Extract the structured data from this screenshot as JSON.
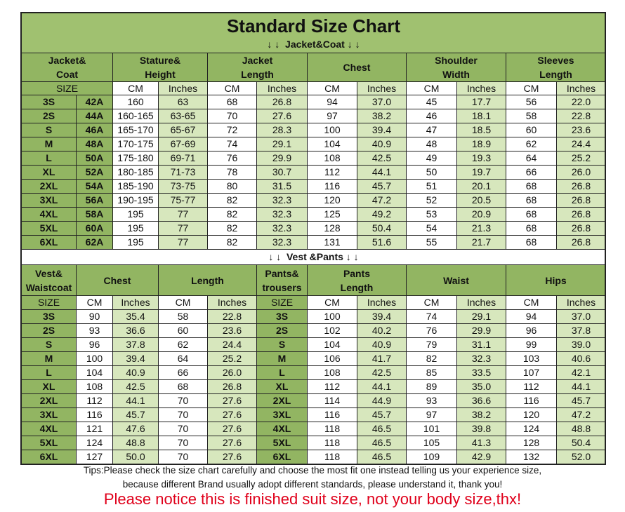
{
  "title": "Standard Size Chart",
  "jacket_section": "↓ ↓  Jacket&Coat ↓ ↓",
  "jacket_table": {
    "headers": [
      [
        "Jacket&",
        "Coat"
      ],
      [
        "Stature&",
        "Height"
      ],
      [
        "Jacket",
        "Length"
      ],
      [
        "Chest"
      ],
      [
        "Shoulder",
        "Width"
      ],
      [
        "Sleeves",
        "Length"
      ]
    ],
    "units": [
      "SIZE",
      "CM",
      "Inches",
      "CM",
      "Inches",
      "CM",
      "Inches",
      "CM",
      "Inches",
      "CM",
      "Inches"
    ],
    "rows": [
      [
        "3S",
        "42A",
        "160",
        "63",
        "68",
        "26.8",
        "94",
        "37.0",
        "45",
        "17.7",
        "56",
        "22.0"
      ],
      [
        "2S",
        "44A",
        "160-165",
        "63-65",
        "70",
        "27.6",
        "97",
        "38.2",
        "46",
        "18.1",
        "58",
        "22.8"
      ],
      [
        "S",
        "46A",
        "165-170",
        "65-67",
        "72",
        "28.3",
        "100",
        "39.4",
        "47",
        "18.5",
        "60",
        "23.6"
      ],
      [
        "M",
        "48A",
        "170-175",
        "67-69",
        "74",
        "29.1",
        "104",
        "40.9",
        "48",
        "18.9",
        "62",
        "24.4"
      ],
      [
        "L",
        "50A",
        "175-180",
        "69-71",
        "76",
        "29.9",
        "108",
        "42.5",
        "49",
        "19.3",
        "64",
        "25.2"
      ],
      [
        "XL",
        "52A",
        "180-185",
        "71-73",
        "78",
        "30.7",
        "112",
        "44.1",
        "50",
        "19.7",
        "66",
        "26.0"
      ],
      [
        "2XL",
        "54A",
        "185-190",
        "73-75",
        "80",
        "31.5",
        "116",
        "45.7",
        "51",
        "20.1",
        "68",
        "26.8"
      ],
      [
        "3XL",
        "56A",
        "190-195",
        "75-77",
        "82",
        "32.3",
        "120",
        "47.2",
        "52",
        "20.5",
        "68",
        "26.8"
      ],
      [
        "4XL",
        "58A",
        "195",
        "77",
        "82",
        "32.3",
        "125",
        "49.2",
        "53",
        "20.9",
        "68",
        "26.8"
      ],
      [
        "5XL",
        "60A",
        "195",
        "77",
        "82",
        "32.3",
        "128",
        "50.4",
        "54",
        "21.3",
        "68",
        "26.8"
      ],
      [
        "6XL",
        "62A",
        "195",
        "77",
        "82",
        "32.3",
        "131",
        "51.6",
        "55",
        "21.7",
        "68",
        "26.8"
      ]
    ]
  },
  "vest_section": "↓ ↓  Vest &Pants ↓ ↓",
  "vest_table": {
    "headers": [
      [
        "Vest&",
        "Waistcoat"
      ],
      [
        "Chest"
      ],
      [
        "Length"
      ],
      [
        "Pants&",
        "trousers"
      ],
      [
        "Pants",
        "Length"
      ],
      [
        "Waist"
      ],
      [
        "Hips"
      ]
    ],
    "units": [
      "SIZE",
      "CM",
      "Inches",
      "CM",
      "Inches",
      "SIZE",
      "CM",
      "Inches",
      "CM",
      "Inches",
      "CM",
      "Inches"
    ],
    "rows": [
      [
        "3S",
        "90",
        "35.4",
        "58",
        "22.8",
        "3S",
        "100",
        "39.4",
        "74",
        "29.1",
        "94",
        "37.0"
      ],
      [
        "2S",
        "93",
        "36.6",
        "60",
        "23.6",
        "2S",
        "102",
        "40.2",
        "76",
        "29.9",
        "96",
        "37.8"
      ],
      [
        "S",
        "96",
        "37.8",
        "62",
        "24.4",
        "S",
        "104",
        "40.9",
        "79",
        "31.1",
        "99",
        "39.0"
      ],
      [
        "M",
        "100",
        "39.4",
        "64",
        "25.2",
        "M",
        "106",
        "41.7",
        "82",
        "32.3",
        "103",
        "40.6"
      ],
      [
        "L",
        "104",
        "40.9",
        "66",
        "26.0",
        "L",
        "108",
        "42.5",
        "85",
        "33.5",
        "107",
        "42.1"
      ],
      [
        "XL",
        "108",
        "42.5",
        "68",
        "26.8",
        "XL",
        "112",
        "44.1",
        "89",
        "35.0",
        "112",
        "44.1"
      ],
      [
        "2XL",
        "112",
        "44.1",
        "70",
        "27.6",
        "2XL",
        "114",
        "44.9",
        "93",
        "36.6",
        "116",
        "45.7"
      ],
      [
        "3XL",
        "116",
        "45.7",
        "70",
        "27.6",
        "3XL",
        "116",
        "45.7",
        "97",
        "38.2",
        "120",
        "47.2"
      ],
      [
        "4XL",
        "121",
        "47.6",
        "70",
        "27.6",
        "4XL",
        "118",
        "46.5",
        "101",
        "39.8",
        "124",
        "48.8"
      ],
      [
        "5XL",
        "124",
        "48.8",
        "70",
        "27.6",
        "5XL",
        "118",
        "46.5",
        "105",
        "41.3",
        "128",
        "50.4"
      ],
      [
        "6XL",
        "127",
        "50.0",
        "70",
        "27.6",
        "6XL",
        "118",
        "46.5",
        "109",
        "42.9",
        "132",
        "52.0"
      ]
    ]
  },
  "tips": [
    "Tips:Please check the size chart carefully and choose the most fit one instead telling us your experience size,",
    "because different Brand usually adopt different standards, please understand it, thank you!"
  ],
  "notice": "Please notice this is finished suit size, not your body size,thx!"
}
